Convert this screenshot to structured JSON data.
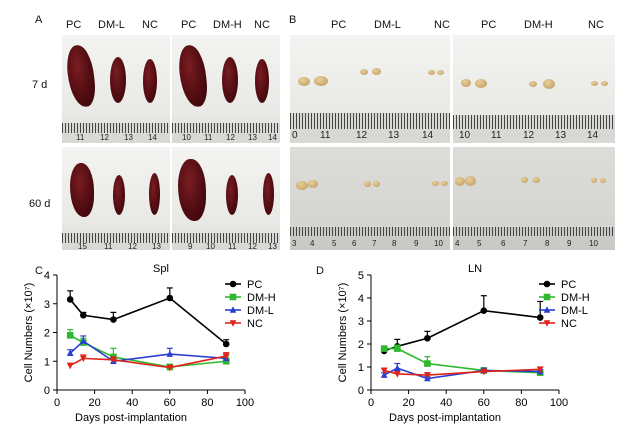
{
  "panel_a": {
    "letter": "A",
    "group_labels_left": [
      "PC",
      "DM-L",
      "NC"
    ],
    "group_labels_right": [
      "PC",
      "DM-H",
      "NC"
    ],
    "row_labels": [
      "7 d",
      "60 d"
    ],
    "ruler_numbers_top_left": [
      "11",
      "12",
      "13",
      "14"
    ],
    "ruler_numbers_top_right": [
      "10",
      "11",
      "12",
      "13",
      "14"
    ],
    "ruler_numbers_bottom_left": [
      "15",
      "11",
      "12",
      "13"
    ],
    "ruler_numbers_bottom_right": [
      "9",
      "10",
      "11",
      "12",
      "13"
    ]
  },
  "panel_b": {
    "letter": "B",
    "group_labels_left": [
      "PC",
      "DM-L",
      "NC"
    ],
    "group_labels_right": [
      "PC",
      "DM-H",
      "NC"
    ],
    "ruler_numbers_top_left": [
      "0",
      "11",
      "12",
      "13",
      "14"
    ],
    "ruler_numbers_top_right": [
      "10",
      "11",
      "12",
      "13",
      "14"
    ],
    "ruler_numbers_bottom_left": [
      "3",
      "4",
      "5",
      "6",
      "7",
      "8",
      "9",
      "10"
    ],
    "ruler_numbers_bottom_right": [
      "4",
      "5",
      "6",
      "7",
      "8",
      "9",
      "10"
    ]
  },
  "colors": {
    "PC": "#000000",
    "DM-H": "#2fb82f",
    "DM-L": "#2a3fd0",
    "NC": "#e0231a"
  },
  "chart_data": [
    {
      "panel": "C",
      "type": "line",
      "title": "Spl",
      "xlabel": "Days post-implantation",
      "ylabel": "Cell Numbers (×10⁷)",
      "xlim": [
        0,
        100
      ],
      "ylim": [
        0,
        4
      ],
      "xticks": [
        "0",
        "20",
        "40",
        "60",
        "80",
        "100"
      ],
      "yticks": [
        "0",
        "1",
        "2",
        "3",
        "4"
      ],
      "legend": [
        "PC",
        "DM-H",
        "DM-L",
        "NC"
      ],
      "series": [
        {
          "name": "PC",
          "x": [
            7,
            14,
            30,
            60,
            90
          ],
          "y": [
            3.15,
            2.6,
            2.45,
            3.2,
            1.6
          ],
          "err": [
            0.3,
            0.1,
            0.25,
            0.35,
            0.15
          ],
          "marker": "circle"
        },
        {
          "name": "DM-H",
          "x": [
            7,
            14,
            30,
            60,
            90
          ],
          "y": [
            1.9,
            1.65,
            1.15,
            0.8,
            1.0
          ],
          "err": [
            0.2,
            0.15,
            0.3,
            0.1,
            0.15
          ],
          "marker": "square"
        },
        {
          "name": "DM-L",
          "x": [
            7,
            14,
            30,
            60,
            90
          ],
          "y": [
            1.28,
            1.7,
            1.0,
            1.25,
            1.1
          ],
          "err": [
            0.12,
            0.18,
            0.1,
            0.2,
            0.12
          ],
          "marker": "triangle-up"
        },
        {
          "name": "NC",
          "x": [
            7,
            14,
            30,
            60,
            90
          ],
          "y": [
            0.85,
            1.1,
            1.05,
            0.78,
            1.18
          ],
          "err": [
            0.08,
            0.12,
            0.1,
            0.08,
            0.12
          ],
          "marker": "triangle-down"
        }
      ]
    },
    {
      "panel": "D",
      "type": "line",
      "title": "LN",
      "xlabel": "Days post-implantation",
      "ylabel": "Cell Numbers (×10⁷)",
      "xlim": [
        0,
        100
      ],
      "ylim": [
        0,
        5
      ],
      "xticks": [
        "0",
        "20",
        "40",
        "60",
        "80",
        "100"
      ],
      "yticks": [
        "0",
        "1",
        "2",
        "3",
        "4",
        "5"
      ],
      "legend": [
        "PC",
        "DM-H",
        "DM-L",
        "NC"
      ],
      "series": [
        {
          "name": "PC",
          "x": [
            7,
            14,
            30,
            60,
            90
          ],
          "y": [
            1.7,
            1.9,
            2.25,
            3.45,
            3.15
          ],
          "err": [
            0.15,
            0.3,
            0.3,
            0.65,
            0.7
          ],
          "marker": "circle"
        },
        {
          "name": "DM-H",
          "x": [
            7,
            14,
            30,
            60,
            90
          ],
          "y": [
            1.8,
            1.8,
            1.15,
            0.85,
            0.75
          ],
          "err": [
            0.1,
            0.15,
            0.3,
            0.1,
            0.1
          ],
          "marker": "square"
        },
        {
          "name": "DM-L",
          "x": [
            7,
            14,
            30,
            60,
            90
          ],
          "y": [
            0.65,
            0.95,
            0.5,
            0.85,
            0.8
          ],
          "err": [
            0.1,
            0.2,
            0.08,
            0.1,
            0.08
          ],
          "marker": "triangle-up"
        },
        {
          "name": "NC",
          "x": [
            7,
            14,
            30,
            60,
            90
          ],
          "y": [
            0.85,
            0.7,
            0.65,
            0.8,
            0.9
          ],
          "err": [
            0.1,
            0.1,
            0.1,
            0.08,
            0.1
          ],
          "marker": "triangle-down"
        }
      ]
    }
  ]
}
